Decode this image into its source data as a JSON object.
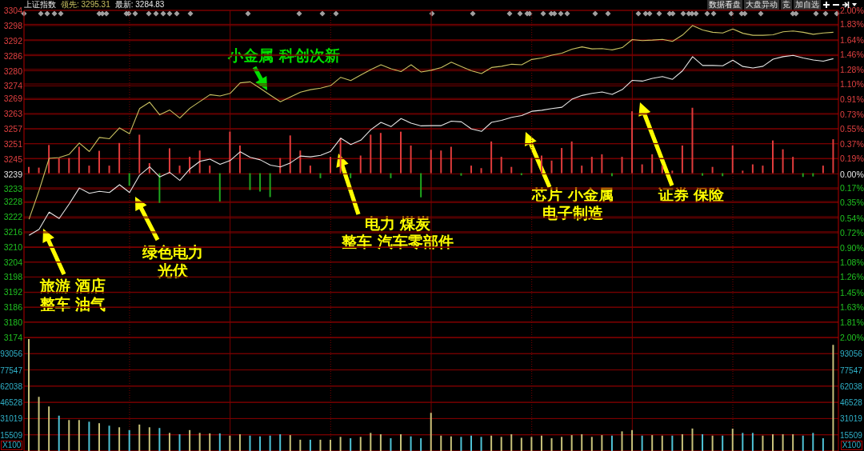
{
  "chart_data": [
    {
      "type": "line",
      "title": "上证指数",
      "grid": true,
      "marker": "none",
      "categories": [
        null,
        null,
        null,
        null,
        null,
        null,
        null,
        null,
        null,
        null,
        null,
        null,
        null,
        null,
        null,
        null,
        null,
        null,
        null,
        null,
        null,
        null,
        null,
        null,
        null,
        null,
        null,
        null,
        null,
        null,
        null,
        null,
        null,
        null,
        null,
        null,
        null,
        null,
        null,
        null,
        null,
        null,
        null,
        null,
        null,
        null,
        null,
        null,
        null,
        null,
        null,
        null,
        null,
        null,
        null,
        null,
        null,
        null,
        null,
        null,
        null,
        null,
        null,
        null,
        null,
        null,
        null,
        null,
        null,
        null,
        null,
        null,
        null,
        null,
        null,
        null,
        null,
        null,
        null,
        null,
        null
      ],
      "series": [
        {
          "type": "line",
          "color": "#c8c060",
          "values": [
            3221,
            3232.4,
            3245.2,
            3245.5,
            3246.8,
            3251.3,
            3247.9,
            3253.5,
            3253,
            3257.3,
            3255,
            3265,
            3267.5,
            3262.5,
            3264.4,
            3261.2,
            3265.1,
            3267.8,
            3270.5,
            3270,
            3271,
            3275.2,
            3275.6,
            3273,
            3270.3,
            3267.7,
            3269.6,
            3271.5,
            3272.5,
            3273.1,
            3274.1,
            3277.4,
            3276.1,
            3278.3,
            3280.5,
            3282.4,
            3280.8,
            3279.7,
            3282.4,
            3279.5,
            3280.2,
            3281.3,
            3283.4,
            3281.7,
            3280,
            3278.9,
            3281.3,
            3281.8,
            3282.6,
            3282.4,
            3284.5,
            3285.1,
            3286.2,
            3287,
            3288.6,
            3289.5,
            3288.7,
            3288.8,
            3288.3,
            3289.2,
            3292.4,
            3292,
            3292.2,
            3292.5,
            3291.7,
            3294.2,
            3298,
            3296.2,
            3295.3,
            3295,
            3296.6,
            3294.9,
            3294.1,
            3294.1,
            3294.3,
            3295.5,
            3295.8,
            3295.3,
            3294.5,
            3295,
            3295.3
          ]
        },
        {
          "type": "line",
          "color": "#e6e6e6",
          "values": [
            3214.6,
            3217,
            3223.8,
            3221.3,
            3227.1,
            3233.4,
            3231.3,
            3232.1,
            3231.6,
            3234.7,
            3231.6,
            3238.5,
            3241.8,
            3237.8,
            3239.6,
            3236.4,
            3241,
            3244,
            3244.9,
            3242.8,
            3244.3,
            3247.8,
            3245.6,
            3244.6,
            3242.5,
            3241.8,
            3243.4,
            3246.1,
            3245.8,
            3246.4,
            3248,
            3253.2,
            3250.7,
            3252.4,
            3256.6,
            3259.5,
            3257.8,
            3261,
            3259.2,
            3258.1,
            3258.2,
            3258.2,
            3260,
            3259.7,
            3256.9,
            3255.9,
            3259.5,
            3260.3,
            3261.5,
            3262.2,
            3263.9,
            3264.3,
            3265,
            3265.5,
            3268.7,
            3270.2,
            3271,
            3271.6,
            3270.6,
            3272.5,
            3276.2,
            3275.9,
            3277,
            3277.7,
            3276.6,
            3280,
            3285.6,
            3282.1,
            3282.1,
            3282,
            3284.2,
            3281.7,
            3281.1,
            3281.8,
            3284.6,
            3285.6,
            3286.1,
            3285.1,
            3284.3,
            3283.8,
            3284.8
          ]
        },
        {
          "type": "bar",
          "base": [
            3239.3,
            3239.3,
            3239.3,
            3239.3,
            3239.3,
            3239.3,
            3239.3,
            3239.3,
            3239.3,
            3239.3,
            3239.3,
            3239.3,
            3239.3,
            3239.3,
            3239.3,
            3239.3,
            3239.3,
            3239.3,
            3239.3,
            3239.3,
            3239.3,
            3239.3,
            3239.3,
            3239.3,
            3239.3,
            3239.3,
            3239.3,
            3239.3,
            3239.3,
            3239.3,
            3239.3,
            3239.3,
            3239.3,
            3239.3,
            3239.3,
            3239.3,
            3239.3,
            3239.3,
            3239.3,
            3239.3,
            3239.3,
            3239.3,
            3239.3,
            3239.3,
            3239.3,
            3239.3,
            3239.3,
            3239.3,
            3239.3,
            3239.3,
            3239.3,
            3239.3,
            3239.3,
            3239.3,
            3239.3,
            3239.3,
            3239.3,
            3239.3,
            3239.3,
            3239.3,
            3239.3,
            3239.3,
            3239.3,
            3239.3,
            3239.3,
            3239.3,
            3239.3,
            3239.3,
            3239.3,
            3239.3,
            3239.3,
            3239.3,
            3239.3,
            3239.3,
            3239.3,
            3239.3,
            3239.3,
            3239.3,
            3239.3,
            3239.3,
            3239.3
          ],
          "values": [
            2.5,
            2.2,
            11.2,
            6,
            6,
            10.5,
            3,
            8.9,
            3,
            12,
            -5,
            15.3,
            4,
            -11.8,
            9.9,
            3,
            6.5,
            9,
            3,
            -11.3,
            16.5,
            11,
            -6.7,
            -7.3,
            -9.5,
            6,
            15,
            9,
            3,
            -2,
            6.5,
            14,
            -2,
            7,
            15.3,
            16,
            -2,
            16.5,
            11,
            -9.6,
            9.3,
            9,
            10.5,
            -1,
            3,
            2,
            12.6,
            6.5,
            2.5,
            -0.8,
            6,
            7,
            5,
            10,
            12.6,
            3,
            6.5,
            7.5,
            -1.2,
            6.5,
            24.6,
            3.5,
            7.5,
            3,
            1,
            11,
            26,
            -1,
            2.5,
            -1.2,
            11,
            1,
            3.5,
            3,
            13,
            9.5,
            6.5,
            -1.5,
            -1.3,
            3,
            13.5
          ],
          "colors": [
            "#e03c3c",
            "#e03c3c",
            "#e03c3c",
            "#e03c3c",
            "#e03c3c",
            "#e03c3c",
            "#e03c3c",
            "#e03c3c",
            "#e03c3c",
            "#e03c3c",
            "#1fa81f",
            "#e03c3c",
            "#e03c3c",
            "#1fa81f",
            "#e03c3c",
            "#e03c3c",
            "#e03c3c",
            "#e03c3c",
            "#e03c3c",
            "#1fa81f",
            "#e03c3c",
            "#e03c3c",
            "#1fa81f",
            "#1fa81f",
            "#1fa81f",
            "#e03c3c",
            "#e03c3c",
            "#e03c3c",
            "#e03c3c",
            "#1fa81f",
            "#e03c3c",
            "#e03c3c",
            "#1fa81f",
            "#e03c3c",
            "#e03c3c",
            "#e03c3c",
            "#1fa81f",
            "#e03c3c",
            "#e03c3c",
            "#1fa81f",
            "#e03c3c",
            "#e03c3c",
            "#e03c3c",
            "#1fa81f",
            "#e03c3c",
            "#e03c3c",
            "#e03c3c",
            "#e03c3c",
            "#e03c3c",
            "#1fa81f",
            "#e03c3c",
            "#e03c3c",
            "#e03c3c",
            "#e03c3c",
            "#e03c3c",
            "#e03c3c",
            "#e03c3c",
            "#e03c3c",
            "#1fa81f",
            "#e03c3c",
            "#e03c3c",
            "#e03c3c",
            "#e03c3c",
            "#e03c3c",
            "#e03c3c",
            "#e03c3c",
            "#e03c3c",
            "#1fa81f",
            "#e03c3c",
            "#1fa81f",
            "#e03c3c",
            "#e03c3c",
            "#e03c3c",
            "#e03c3c",
            "#e03c3c",
            "#e03c3c",
            "#e03c3c",
            "#1fa81f",
            "#1fa81f",
            "#e03c3c",
            "#e03c3c"
          ]
        }
      ],
      "ylim": [
        3174,
        3304
      ],
      "yticks": [
        3304,
        3298,
        3292,
        3286,
        3280,
        3274,
        3269,
        3263,
        3257,
        3251,
        3245,
        3239,
        3233,
        3228,
        3222,
        3216,
        3210,
        3204,
        3198,
        3192,
        3186,
        3180,
        3174
      ],
      "y2lim": [
        -2,
        2
      ],
      "y2ticks": [
        {
          "value": 2,
          "label": "2.00%"
        },
        {
          "value": 1.83,
          "label": "1.83%"
        },
        {
          "value": 1.64,
          "label": "1.64%"
        },
        {
          "value": 1.46,
          "label": "1.46%"
        },
        {
          "value": 1.28,
          "label": "1.28%"
        },
        {
          "value": 1.1,
          "label": "1.10%"
        },
        {
          "value": 0.91,
          "label": "0.91%"
        },
        {
          "value": 0.73,
          "label": "0.73%"
        },
        {
          "value": 0.55,
          "label": "0.55%"
        },
        {
          "value": 0.37,
          "label": "0.37%"
        },
        {
          "value": 0.19,
          "label": "0.19%"
        },
        {
          "value": 0,
          "label": "0.00%"
        },
        {
          "value": -0.17,
          "label": "0.17%"
        },
        {
          "value": -0.35,
          "label": "0.35%"
        },
        {
          "value": -0.54,
          "label": "0.54%"
        },
        {
          "value": -0.72,
          "label": "0.72%"
        },
        {
          "value": -0.9,
          "label": "0.90%"
        },
        {
          "value": -1.08,
          "label": "1.08%"
        },
        {
          "value": -1.26,
          "label": "1.26%"
        },
        {
          "value": -1.45,
          "label": "1.45%"
        },
        {
          "value": -1.63,
          "label": "1.63%"
        },
        {
          "value": -1.81,
          "label": "1.81%"
        },
        {
          "value": -2,
          "label": "2.00%"
        }
      ],
      "annotations": [
        "领先: 3295.31",
        "最新: 3284.83",
        "数据看盘",
        "大盘异动",
        "竞",
        "加自选",
        "小金属 科创次新",
        "旅游 酒店",
        "整车 油气",
        "绿色电力",
        "光伏",
        "电力 煤炭",
        "整车 汽车零部件",
        "芯片 小金属",
        "电子制造",
        "证券 保险"
      ]
    },
    {
      "type": "bar",
      "grid": true,
      "ylabel": "X100",
      "y2label": "X100",
      "categories": [
        null,
        null,
        null,
        null,
        null,
        null,
        null,
        null,
        null,
        null,
        null,
        null,
        null,
        null,
        null,
        null,
        null,
        null,
        null,
        null,
        null,
        null,
        null,
        null,
        null,
        null,
        null,
        null,
        null,
        null,
        null,
        null,
        null,
        null,
        null,
        null,
        null,
        null,
        null,
        null,
        null,
        null,
        null,
        null,
        null,
        null,
        null,
        null,
        null,
        null,
        null,
        null,
        null,
        null,
        null,
        null,
        null,
        null,
        null,
        null,
        null,
        null,
        null,
        null,
        null,
        null,
        null,
        null,
        null,
        null,
        null,
        null,
        null,
        null,
        null,
        null,
        null,
        null,
        null,
        null,
        null
      ],
      "values": [
        107000,
        51800,
        42600,
        33800,
        29600,
        29600,
        28000,
        26600,
        24200,
        22700,
        20000,
        25300,
        22700,
        22000,
        17300,
        16000,
        20000,
        17300,
        16800,
        16800,
        14700,
        16000,
        14700,
        14000,
        14700,
        16000,
        15200,
        10800,
        10800,
        10800,
        10800,
        13500,
        12200,
        13500,
        17300,
        16000,
        12200,
        16000,
        14000,
        12200,
        36500,
        14700,
        14000,
        13500,
        14700,
        13500,
        14700,
        13500,
        16000,
        12600,
        13500,
        14700,
        12200,
        13500,
        15200,
        16000,
        13500,
        15200,
        14700,
        18800,
        20000,
        14700,
        15200,
        14700,
        14700,
        16000,
        21500,
        16000,
        14700,
        14700,
        21300,
        17300,
        17300,
        14700,
        16000,
        16000,
        16000,
        14700,
        17300,
        12200,
        101500
      ],
      "colors": [
        "#c8c27a",
        "#c8c27a",
        "#c8c27a",
        "#4fc3d6",
        "#c8c27a",
        "#c8c27a",
        "#4fc3d6",
        "#c8c27a",
        "#4fc3d6",
        "#c8c27a",
        "#4fc3d6",
        "#c8c27a",
        "#c8c27a",
        "#4fc3d6",
        "#c8c27a",
        "#4fc3d6",
        "#c8c27a",
        "#c8c27a",
        "#c8c27a",
        "#4fc3d6",
        "#c8c27a",
        "#c8c27a",
        "#4fc3d6",
        "#4fc3d6",
        "#4fc3d6",
        "#4fc3d6",
        "#c8c27a",
        "#c8c27a",
        "#4fc3d6",
        "#c8c27a",
        "#c8c27a",
        "#c8c27a",
        "#4fc3d6",
        "#c8c27a",
        "#c8c27a",
        "#c8c27a",
        "#4fc3d6",
        "#c8c27a",
        "#4fc3d6",
        "#4fc3d6",
        "#c8c27a",
        "#c8c27a",
        "#c8c27a",
        "#4fc3d6",
        "#4fc3d6",
        "#4fc3d6",
        "#c8c27a",
        "#c8c27a",
        "#c8c27a",
        "#c8c27a",
        "#c8c27a",
        "#c8c27a",
        "#c8c27a",
        "#c8c27a",
        "#c8c27a",
        "#c8c27a",
        "#c8c27a",
        "#c8c27a",
        "#4fc3d6",
        "#c8c27a",
        "#c8c27a",
        "#4fc3d6",
        "#c8c27a",
        "#c8c27a",
        "#4fc3d6",
        "#c8c27a",
        "#c8c27a",
        "#4fc3d6",
        "#c8c27a",
        "#4fc3d6",
        "#c8c27a",
        "#4fc3d6",
        "#4fc3d6",
        "#c8c27a",
        "#c8c27a",
        "#c8c27a",
        "#c8c27a",
        "#4fc3d6",
        "#4fc3d6",
        "#4fc3d6",
        "#c8c27a"
      ],
      "ylim": [
        0,
        108565
      ],
      "yticks": [
        15509,
        31019,
        46528,
        62038,
        77547,
        93056
      ],
      "y2lim": [
        0,
        108565
      ],
      "y2ticks": [
        15509,
        31019,
        46528,
        62038,
        77547,
        93056
      ]
    }
  ]
}
